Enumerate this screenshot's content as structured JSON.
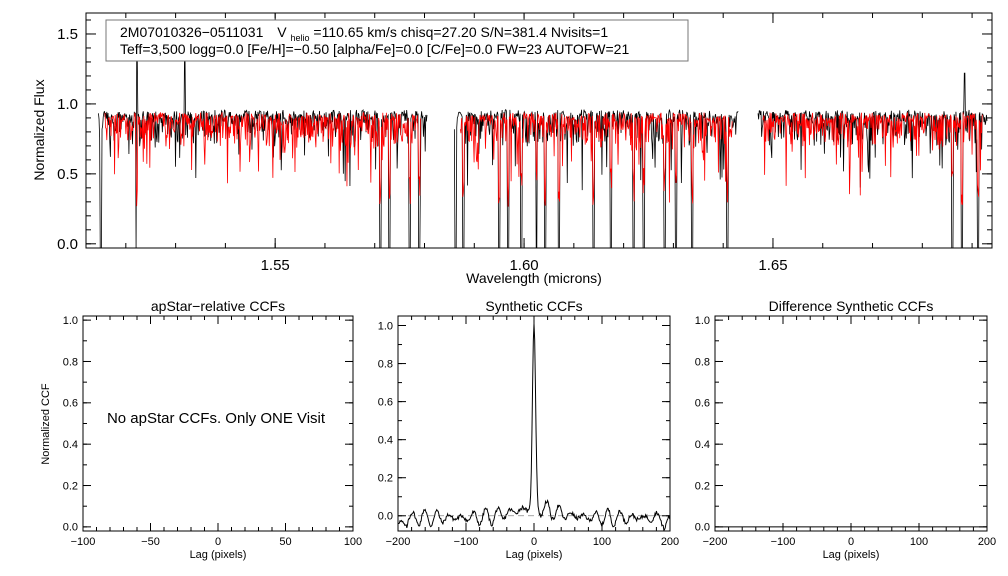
{
  "chart_data": [
    {
      "type": "line",
      "ylabel": "Normalized Flux",
      "xlabel": "Wavelength (microns)",
      "xlim": [
        1.512,
        1.694
      ],
      "ylim": [
        -0.03,
        1.65
      ],
      "xticks": [
        "1.55",
        "1.60",
        "1.65"
      ],
      "yticks": [
        "0.0",
        "0.5",
        "1.0",
        "1.5"
      ],
      "info_line1": "2M07010326−0511031",
      "info_vhelio_prefix": "V",
      "info_vhelio_sub": "helio",
      "info_vhelio_rest": "=110.65 km/s  chisq=27.20  S/N=381.4  Nvisits=1",
      "info_line2": "Teff=3,500 logg=0.0 [Fe/H]=−0.50 [alpha/Fe]=0.0 [C/Fe]=0.0 FW=23 AUTOFW=21",
      "segments": [
        [
          1.5145,
          1.5805
        ],
        [
          1.586,
          1.643
        ],
        [
          1.647,
          1.693
        ]
      ],
      "series": [
        {
          "color": "#000000",
          "baseline": 0.93
        },
        {
          "color": "#ff0000",
          "baseline": 0.91
        }
      ],
      "deep_lines": [
        1.515,
        1.5222,
        1.5712,
        1.573,
        1.577,
        1.579,
        1.5862,
        1.5878,
        1.595,
        1.5968,
        1.5995,
        1.6025,
        1.6042,
        1.607,
        1.614,
        1.6175,
        1.622,
        1.624,
        1.6282,
        1.6305,
        1.6338,
        1.6408,
        1.686,
        1.688,
        1.6912
      ],
      "spikes": [
        [
          1.5222,
          1.34
        ],
        [
          1.5318,
          1.31
        ],
        [
          1.6885,
          1.22
        ]
      ]
    },
    {
      "type": "line",
      "title": "apStar−relative CCFs",
      "ylabel": "Normalized CCF",
      "xlabel": "Lag (pixels)",
      "xlim": [
        -100,
        100
      ],
      "ylim": [
        -0.02,
        1.02
      ],
      "xticks": [
        "−100",
        "−50",
        "0",
        "50",
        "100"
      ],
      "yticks": [
        "0.0",
        "0.2",
        "0.4",
        "0.6",
        "0.8",
        "1.0"
      ],
      "message": "No apStar CCFs.  Only ONE Visit"
    },
    {
      "type": "line",
      "title": "Synthetic CCFs",
      "xlabel": "Lag (pixels)",
      "xlim": [
        -200,
        200
      ],
      "ylim": [
        -0.08,
        1.05
      ],
      "xticks": [
        "−200",
        "−100",
        "0",
        "100",
        "200"
      ],
      "yticks": [
        "0.0",
        "0.2",
        "0.4",
        "0.6",
        "0.8",
        "1.0"
      ],
      "peak": {
        "lag": 0,
        "value": 1.0
      },
      "dashed_baseline": 0.0
    },
    {
      "type": "line",
      "title": "Difference Synthetic CCFs",
      "xlabel": "Lag (pixels)",
      "xlim": [
        -200,
        200
      ],
      "ylim": [
        -0.02,
        1.02
      ],
      "xticks": [
        "−200",
        "−100",
        "0",
        "100",
        "200"
      ],
      "yticks": [
        "0.0",
        "0.2",
        "0.4",
        "0.6",
        "0.8",
        "1.0"
      ],
      "flat_value": 0.0
    }
  ]
}
